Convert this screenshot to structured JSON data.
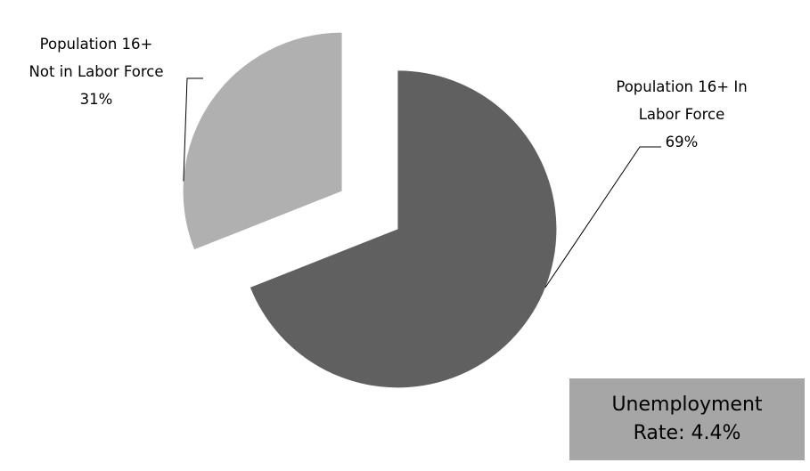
{
  "chart_data": {
    "type": "pie",
    "exploded": true,
    "slices": [
      {
        "name": "Population 16+ In Labor Force",
        "value": 69,
        "label_lines": [
          "Population 16+ In",
          "Labor Force",
          "69%"
        ],
        "color": "#606060"
      },
      {
        "name": "Population 16+ Not in Labor Force",
        "value": 31,
        "label_lines": [
          "Population 16+",
          "Not in Labor Force",
          "31%"
        ],
        "color": "#b0b0b0"
      }
    ],
    "legend": "none"
  },
  "callout": {
    "line1": "Unemployment",
    "line2": "Rate: 4.4%",
    "background": "#a6a6a6"
  }
}
